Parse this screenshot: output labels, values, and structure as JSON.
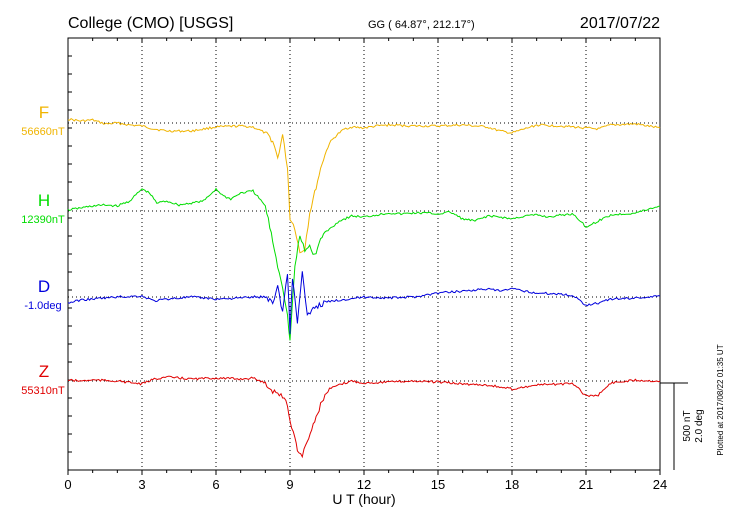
{
  "header": {
    "station": "College (CMO)  [USGS]",
    "coords": "GG ( 64.87°, 212.17°)",
    "date": "2017/07/22"
  },
  "footer_note": "Plotted at 2017/08/22 01:35 UT",
  "scale": {
    "nt_label": "500 nT",
    "deg_label": "2.0 deg"
  },
  "chart_data": {
    "type": "line",
    "title": "College (CMO)  [USGS]",
    "xlabel": "U T (hour)",
    "ylabel": "",
    "x_ticks": [
      "0",
      "3",
      "6",
      "9",
      "12",
      "15",
      "18",
      "21",
      "24"
    ],
    "xlim": [
      0,
      24
    ],
    "grid": true,
    "vertical_scale": {
      "nT": 500,
      "deg": 2.0
    },
    "series": [
      {
        "name": "F",
        "baseline_label": "56660nT",
        "color": "#f0b400",
        "points": [
          [
            0,
            4
          ],
          [
            0.5,
            2
          ],
          [
            1,
            3
          ],
          [
            1.5,
            -1
          ],
          [
            2,
            0
          ],
          [
            2.5,
            -2
          ],
          [
            3,
            -3
          ],
          [
            3.5,
            -6
          ],
          [
            4,
            -8
          ],
          [
            5,
            -8
          ],
          [
            6,
            -4
          ],
          [
            7,
            -3
          ],
          [
            7.5,
            -4
          ],
          [
            8,
            -10
          ],
          [
            8.3,
            -18
          ],
          [
            8.5,
            -35
          ],
          [
            8.7,
            -12
          ],
          [
            8.9,
            -45
          ],
          [
            9.0,
            -95
          ],
          [
            9.2,
            -105
          ],
          [
            9.4,
            -130
          ],
          [
            9.6,
            -125
          ],
          [
            9.8,
            -90
          ],
          [
            10.0,
            -70
          ],
          [
            10.3,
            -40
          ],
          [
            10.6,
            -20
          ],
          [
            10.9,
            -12
          ],
          [
            11.2,
            -6
          ],
          [
            11.5,
            -4
          ],
          [
            12,
            -5
          ],
          [
            12.5,
            -3
          ],
          [
            13,
            -2
          ],
          [
            14,
            -3
          ],
          [
            15,
            -3
          ],
          [
            16,
            -2
          ],
          [
            17,
            -4
          ],
          [
            17.5,
            -8
          ],
          [
            18,
            -10
          ],
          [
            18.5,
            -6
          ],
          [
            19,
            -2
          ],
          [
            20,
            -3
          ],
          [
            20.5,
            -4
          ],
          [
            21,
            -5
          ],
          [
            21.5,
            -6
          ],
          [
            22,
            -2
          ],
          [
            23,
            -1
          ],
          [
            24,
            -5
          ]
        ]
      },
      {
        "name": "H",
        "baseline_label": "12390nT",
        "color": "#00dd00",
        "points": [
          [
            0,
            1
          ],
          [
            0.5,
            3
          ],
          [
            1,
            5
          ],
          [
            1.5,
            6
          ],
          [
            2,
            5
          ],
          [
            2.5,
            10
          ],
          [
            3,
            22
          ],
          [
            3.3,
            18
          ],
          [
            3.6,
            8
          ],
          [
            4,
            10
          ],
          [
            4.5,
            6
          ],
          [
            5,
            8
          ],
          [
            5.5,
            10
          ],
          [
            6,
            22
          ],
          [
            6.3,
            15
          ],
          [
            6.6,
            12
          ],
          [
            7,
            18
          ],
          [
            7.5,
            20
          ],
          [
            8,
            5
          ],
          [
            8.3,
            -30
          ],
          [
            8.5,
            -55
          ],
          [
            8.7,
            -75
          ],
          [
            8.9,
            -105
          ],
          [
            9.0,
            -130
          ],
          [
            9.2,
            -55
          ],
          [
            9.4,
            -25
          ],
          [
            9.6,
            -40
          ],
          [
            9.8,
            -35
          ],
          [
            10.0,
            -45
          ],
          [
            10.3,
            -25
          ],
          [
            10.6,
            -18
          ],
          [
            11,
            -10
          ],
          [
            11.5,
            -5
          ],
          [
            12,
            -6
          ],
          [
            12.5,
            -4
          ],
          [
            13,
            -2
          ],
          [
            13.5,
            -3
          ],
          [
            14,
            -2
          ],
          [
            14.5,
            -2
          ],
          [
            15,
            -3
          ],
          [
            15.5,
            -1
          ],
          [
            16,
            -8
          ],
          [
            16.5,
            -10
          ],
          [
            17,
            -5
          ],
          [
            17.5,
            -6
          ],
          [
            18,
            -8
          ],
          [
            18.5,
            -5
          ],
          [
            19,
            -4
          ],
          [
            19.5,
            -6
          ],
          [
            20,
            -4
          ],
          [
            20.5,
            -3
          ],
          [
            21,
            -16
          ],
          [
            21.5,
            -10
          ],
          [
            22,
            -4
          ],
          [
            23,
            -2
          ],
          [
            24,
            5
          ]
        ]
      },
      {
        "name": "D",
        "baseline_label": "-1.0deg",
        "color": "#0000dd",
        "points": [
          [
            0,
            -6
          ],
          [
            0.5,
            -3
          ],
          [
            1,
            -2
          ],
          [
            2,
            0
          ],
          [
            3,
            1
          ],
          [
            3.5,
            -4
          ],
          [
            4,
            -2
          ],
          [
            5,
            0
          ],
          [
            6,
            -2
          ],
          [
            7,
            -1
          ],
          [
            7.5,
            0
          ],
          [
            8,
            0
          ],
          [
            8.3,
            -5
          ],
          [
            8.5,
            10
          ],
          [
            8.7,
            -15
          ],
          [
            8.9,
            25
          ],
          [
            9.0,
            -35
          ],
          [
            9.1,
            20
          ],
          [
            9.3,
            -25
          ],
          [
            9.5,
            25
          ],
          [
            9.7,
            -20
          ],
          [
            10,
            -10
          ],
          [
            10.5,
            -5
          ],
          [
            11,
            -3
          ],
          [
            12,
            0
          ],
          [
            13,
            -1
          ],
          [
            14,
            0
          ],
          [
            15,
            4
          ],
          [
            16,
            6
          ],
          [
            17,
            8
          ],
          [
            17.5,
            6
          ],
          [
            18,
            8
          ],
          [
            18.5,
            6
          ],
          [
            19,
            4
          ],
          [
            20,
            3
          ],
          [
            20.5,
            1
          ],
          [
            21,
            -8
          ],
          [
            21.5,
            -6
          ],
          [
            22,
            -2
          ],
          [
            23,
            -1
          ],
          [
            24,
            1
          ]
        ]
      },
      {
        "name": "Z",
        "baseline_label": "55310nT",
        "color": "#e00000",
        "points": [
          [
            0,
            1
          ],
          [
            0.5,
            0
          ],
          [
            1,
            1
          ],
          [
            2,
            0
          ],
          [
            3,
            -3
          ],
          [
            3.5,
            2
          ],
          [
            4,
            4
          ],
          [
            5,
            2
          ],
          [
            6,
            3
          ],
          [
            7,
            2
          ],
          [
            7.5,
            3
          ],
          [
            8,
            -2
          ],
          [
            8.3,
            -10
          ],
          [
            8.5,
            -12
          ],
          [
            8.7,
            -15
          ],
          [
            8.9,
            -25
          ],
          [
            9.0,
            -40
          ],
          [
            9.2,
            -55
          ],
          [
            9.3,
            -70
          ],
          [
            9.5,
            -75
          ],
          [
            9.7,
            -60
          ],
          [
            10,
            -40
          ],
          [
            10.3,
            -20
          ],
          [
            10.6,
            -8
          ],
          [
            11,
            -4
          ],
          [
            11.5,
            0
          ],
          [
            12,
            -2
          ],
          [
            13,
            -1
          ],
          [
            14,
            0
          ],
          [
            15,
            -1
          ],
          [
            16,
            -3
          ],
          [
            17,
            -4
          ],
          [
            17.5,
            -6
          ],
          [
            18,
            -8
          ],
          [
            18.5,
            -6
          ],
          [
            19,
            -4
          ],
          [
            20,
            -3
          ],
          [
            20.5,
            -3
          ],
          [
            21,
            -15
          ],
          [
            21.5,
            -14
          ],
          [
            22,
            -2
          ],
          [
            23,
            1
          ],
          [
            24,
            0
          ]
        ]
      }
    ]
  }
}
